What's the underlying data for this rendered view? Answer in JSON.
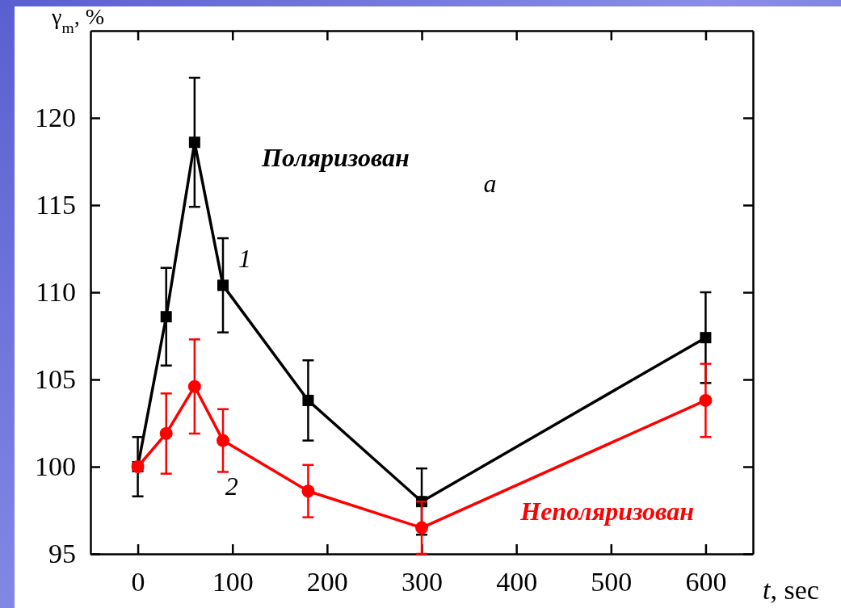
{
  "chart_data": {
    "type": "line",
    "xlabel": "t, sec",
    "ylabel": "γ$_{m}$, %",
    "x": [
      0,
      30,
      60,
      90,
      180,
      300,
      600
    ],
    "xlim": [
      -50,
      650
    ],
    "xticks": [
      0,
      100,
      200,
      300,
      400,
      500,
      600
    ],
    "ylim": [
      95,
      125
    ],
    "yticks": [
      95,
      100,
      105,
      110,
      115,
      120
    ],
    "line_style": "solid",
    "grid": false,
    "series": [
      {
        "name": "Поляризован",
        "color": "#000000",
        "marker": "square",
        "values": [
          100,
          108.6,
          118.6,
          110.4,
          103.8,
          98.0,
          107.4
        ],
        "errors": [
          1.7,
          2.8,
          3.7,
          2.7,
          2.3,
          1.9,
          2.6
        ]
      },
      {
        "name": "Неполяризован",
        "color": "#ff0000",
        "marker": "circle",
        "values": [
          100,
          101.9,
          104.6,
          101.5,
          98.6,
          96.5,
          103.8
        ],
        "errors": [
          null,
          2.3,
          2.7,
          1.8,
          1.5,
          1.5,
          2.1
        ]
      }
    ],
    "annotations": [
      "1",
      "2",
      "a"
    ]
  }
}
